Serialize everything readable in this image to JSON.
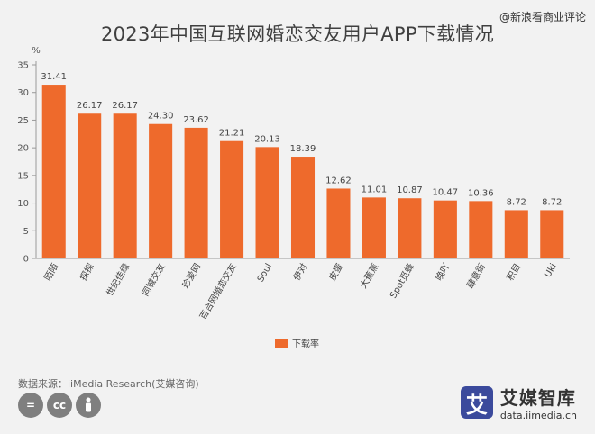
{
  "watermark": "@新浪看商业评论",
  "title": "2023年中国互联网婚恋交友用户APP下载情况",
  "source": "数据来源：iiMedia Research(艾媒咨询)",
  "license_icons": [
    "=",
    "cc",
    "person"
  ],
  "logo": {
    "mark": "艾",
    "name": "艾媒智库",
    "url": "data.iimedia.cn"
  },
  "chart_data": {
    "type": "bar",
    "unit_label": "%",
    "categories": [
      "陌陌",
      "探探",
      "世纪佳缘",
      "同城交友",
      "珍爱网",
      "百合网婚恋交友",
      "Soul",
      "伊对",
      "皮蛋",
      "大蕉蕉",
      "Spot觅蜂",
      "唤吖",
      "肆意街",
      "积目",
      "Uki"
    ],
    "series": [
      {
        "name": "下载率",
        "color": "#ee6a2c",
        "values": [
          31.41,
          26.17,
          26.17,
          24.3,
          23.62,
          21.21,
          20.13,
          18.39,
          12.62,
          11.01,
          10.87,
          10.47,
          10.36,
          8.72,
          8.72
        ]
      }
    ],
    "value_labels": [
      "31.41",
      "26.17",
      "26.17",
      "24.30",
      "23.62",
      "21.21",
      "20.13",
      "18.39",
      "12.62",
      "11.01",
      "10.87",
      "10.47",
      "10.36",
      "8.72",
      "8.72"
    ],
    "ylim": [
      0,
      35
    ],
    "yticks": [
      0,
      5,
      10,
      15,
      20,
      25,
      30,
      35
    ],
    "legend_position": "bottom-center",
    "grid": false
  }
}
